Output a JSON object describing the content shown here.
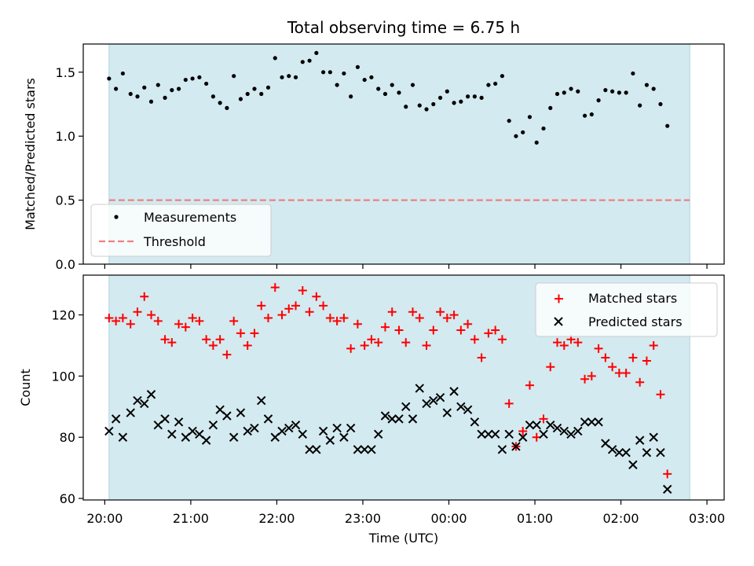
{
  "chart_data": [
    {
      "type": "scatter",
      "title": "Total observing time = 6.75 h",
      "xlabel": "",
      "ylabel": "Matched/Predicted stars",
      "ylim": [
        0,
        1.72
      ],
      "yticks": [
        0.0,
        0.5,
        1.0,
        1.5
      ],
      "ytick_labels": [
        "0.0",
        "0.5",
        "1.0",
        "1.5"
      ],
      "xlim_hours": [
        19.75,
        27.2
      ],
      "xticks": [
        20,
        21,
        22,
        23,
        24,
        25,
        26,
        27
      ],
      "shaded_span": [
        20.05,
        26.8
      ],
      "shade_color": "#d3eaf0",
      "legend_position": "lower-left",
      "series": [
        {
          "name": "Measurements",
          "marker": "dot",
          "color": "#000000",
          "points": [
            [
              20.05,
              1.45
            ],
            [
              20.13,
              1.37
            ],
            [
              20.21,
              1.49
            ],
            [
              20.3,
              1.33
            ],
            [
              20.38,
              1.31
            ],
            [
              20.46,
              1.38
            ],
            [
              20.54,
              1.27
            ],
            [
              20.62,
              1.4
            ],
            [
              20.7,
              1.3
            ],
            [
              20.78,
              1.36
            ],
            [
              20.86,
              1.37
            ],
            [
              20.94,
              1.44
            ],
            [
              21.02,
              1.45
            ],
            [
              21.1,
              1.46
            ],
            [
              21.18,
              1.41
            ],
            [
              21.26,
              1.31
            ],
            [
              21.34,
              1.26
            ],
            [
              21.42,
              1.22
            ],
            [
              21.5,
              1.47
            ],
            [
              21.58,
              1.29
            ],
            [
              21.66,
              1.33
            ],
            [
              21.74,
              1.37
            ],
            [
              21.82,
              1.33
            ],
            [
              21.9,
              1.38
            ],
            [
              21.98,
              1.61
            ],
            [
              22.06,
              1.46
            ],
            [
              22.14,
              1.47
            ],
            [
              22.22,
              1.46
            ],
            [
              22.3,
              1.58
            ],
            [
              22.38,
              1.59
            ],
            [
              22.46,
              1.65
            ],
            [
              22.54,
              1.5
            ],
            [
              22.62,
              1.5
            ],
            [
              22.7,
              1.4
            ],
            [
              22.78,
              1.49
            ],
            [
              22.86,
              1.31
            ],
            [
              22.94,
              1.54
            ],
            [
              23.02,
              1.44
            ],
            [
              23.1,
              1.46
            ],
            [
              23.18,
              1.37
            ],
            [
              23.26,
              1.33
            ],
            [
              23.34,
              1.4
            ],
            [
              23.42,
              1.34
            ],
            [
              23.5,
              1.23
            ],
            [
              23.58,
              1.4
            ],
            [
              23.66,
              1.24
            ],
            [
              23.74,
              1.21
            ],
            [
              23.82,
              1.25
            ],
            [
              23.9,
              1.3
            ],
            [
              23.98,
              1.35
            ],
            [
              24.06,
              1.26
            ],
            [
              24.14,
              1.27
            ],
            [
              24.22,
              1.31
            ],
            [
              24.3,
              1.31
            ],
            [
              24.38,
              1.3
            ],
            [
              24.46,
              1.4
            ],
            [
              24.54,
              1.41
            ],
            [
              24.62,
              1.47
            ],
            [
              24.7,
              1.12
            ],
            [
              24.78,
              1.0
            ],
            [
              24.86,
              1.03
            ],
            [
              24.94,
              1.15
            ],
            [
              25.02,
              0.95
            ],
            [
              25.1,
              1.06
            ],
            [
              25.18,
              1.22
            ],
            [
              25.26,
              1.33
            ],
            [
              25.34,
              1.34
            ],
            [
              25.42,
              1.37
            ],
            [
              25.5,
              1.35
            ],
            [
              25.58,
              1.16
            ],
            [
              25.66,
              1.17
            ],
            [
              25.74,
              1.28
            ],
            [
              25.82,
              1.36
            ],
            [
              25.9,
              1.35
            ],
            [
              25.98,
              1.34
            ],
            [
              26.06,
              1.34
            ],
            [
              26.14,
              1.49
            ],
            [
              26.22,
              1.24
            ],
            [
              26.3,
              1.4
            ],
            [
              26.38,
              1.37
            ],
            [
              26.46,
              1.25
            ],
            [
              26.54,
              1.08
            ]
          ]
        },
        {
          "name": "Threshold",
          "marker": "dashed-line",
          "color": "#f08080",
          "y": 0.5,
          "x": [
            20.05,
            26.8
          ]
        }
      ]
    },
    {
      "type": "scatter",
      "title": "",
      "xlabel": "Time (UTC)",
      "ylabel": "Count",
      "ylim": [
        59.5,
        133
      ],
      "yticks": [
        60,
        80,
        100,
        120
      ],
      "ytick_labels": [
        "60",
        "80",
        "100",
        "120"
      ],
      "xlim_hours": [
        19.75,
        27.2
      ],
      "xticks": [
        20,
        21,
        22,
        23,
        24,
        25,
        26,
        27
      ],
      "xtick_labels": [
        "20:00",
        "21:00",
        "22:00",
        "23:00",
        "00:00",
        "01:00",
        "02:00",
        "03:00"
      ],
      "shaded_span": [
        20.05,
        26.8
      ],
      "shade_color": "#d3eaf0",
      "legend_position": "top-right",
      "series": [
        {
          "name": "Matched stars",
          "marker": "plus",
          "color": "#ff0000",
          "points": [
            [
              20.05,
              119
            ],
            [
              20.13,
              118
            ],
            [
              20.21,
              119
            ],
            [
              20.3,
              117
            ],
            [
              20.38,
              121
            ],
            [
              20.46,
              126
            ],
            [
              20.54,
              120
            ],
            [
              20.62,
              118
            ],
            [
              20.7,
              112
            ],
            [
              20.78,
              111
            ],
            [
              20.86,
              117
            ],
            [
              20.94,
              116
            ],
            [
              21.02,
              119
            ],
            [
              21.1,
              118
            ],
            [
              21.18,
              112
            ],
            [
              21.26,
              110
            ],
            [
              21.34,
              112
            ],
            [
              21.42,
              107
            ],
            [
              21.5,
              118
            ],
            [
              21.58,
              114
            ],
            [
              21.66,
              110
            ],
            [
              21.74,
              114
            ],
            [
              21.82,
              123
            ],
            [
              21.9,
              119
            ],
            [
              21.98,
              129
            ],
            [
              22.06,
              120
            ],
            [
              22.14,
              122
            ],
            [
              22.22,
              123
            ],
            [
              22.3,
              128
            ],
            [
              22.38,
              121
            ],
            [
              22.46,
              126
            ],
            [
              22.54,
              123
            ],
            [
              22.62,
              119
            ],
            [
              22.7,
              118
            ],
            [
              22.78,
              119
            ],
            [
              22.86,
              109
            ],
            [
              22.94,
              117
            ],
            [
              23.02,
              110
            ],
            [
              23.1,
              112
            ],
            [
              23.18,
              111
            ],
            [
              23.26,
              116
            ],
            [
              23.34,
              121
            ],
            [
              23.42,
              115
            ],
            [
              23.5,
              111
            ],
            [
              23.58,
              121
            ],
            [
              23.66,
              119
            ],
            [
              23.74,
              110
            ],
            [
              23.82,
              115
            ],
            [
              23.9,
              121
            ],
            [
              23.98,
              119
            ],
            [
              24.06,
              120
            ],
            [
              24.14,
              115
            ],
            [
              24.22,
              117
            ],
            [
              24.3,
              112
            ],
            [
              24.38,
              106
            ],
            [
              24.46,
              114
            ],
            [
              24.54,
              115
            ],
            [
              24.62,
              112
            ],
            [
              24.7,
              91
            ],
            [
              24.78,
              77
            ],
            [
              24.86,
              82
            ],
            [
              24.94,
              97
            ],
            [
              25.02,
              80
            ],
            [
              25.1,
              86
            ],
            [
              25.18,
              103
            ],
            [
              25.26,
              111
            ],
            [
              25.34,
              110
            ],
            [
              25.42,
              112
            ],
            [
              25.5,
              111
            ],
            [
              25.58,
              99
            ],
            [
              25.66,
              100
            ],
            [
              25.74,
              109
            ],
            [
              25.82,
              106
            ],
            [
              25.9,
              103
            ],
            [
              25.98,
              101
            ],
            [
              26.06,
              101
            ],
            [
              26.14,
              106
            ],
            [
              26.22,
              98
            ],
            [
              26.3,
              105
            ],
            [
              26.38,
              110
            ],
            [
              26.46,
              94
            ],
            [
              26.54,
              68
            ]
          ]
        },
        {
          "name": "Predicted stars",
          "marker": "x",
          "color": "#000000",
          "points": [
            [
              20.05,
              82
            ],
            [
              20.13,
              86
            ],
            [
              20.21,
              80
            ],
            [
              20.3,
              88
            ],
            [
              20.38,
              92
            ],
            [
              20.46,
              91
            ],
            [
              20.54,
              94
            ],
            [
              20.62,
              84
            ],
            [
              20.7,
              86
            ],
            [
              20.78,
              81
            ],
            [
              20.86,
              85
            ],
            [
              20.94,
              80
            ],
            [
              21.02,
              82
            ],
            [
              21.1,
              81
            ],
            [
              21.18,
              79
            ],
            [
              21.26,
              84
            ],
            [
              21.34,
              89
            ],
            [
              21.42,
              87
            ],
            [
              21.5,
              80
            ],
            [
              21.58,
              88
            ],
            [
              21.66,
              82
            ],
            [
              21.74,
              83
            ],
            [
              21.82,
              92
            ],
            [
              21.9,
              86
            ],
            [
              21.98,
              80
            ],
            [
              22.06,
              82
            ],
            [
              22.14,
              83
            ],
            [
              22.22,
              84
            ],
            [
              22.3,
              81
            ],
            [
              22.38,
              76
            ],
            [
              22.46,
              76
            ],
            [
              22.54,
              82
            ],
            [
              22.62,
              79
            ],
            [
              22.7,
              83
            ],
            [
              22.78,
              80
            ],
            [
              22.86,
              83
            ],
            [
              22.94,
              76
            ],
            [
              23.02,
              76
            ],
            [
              23.1,
              76
            ],
            [
              23.18,
              81
            ],
            [
              23.26,
              87
            ],
            [
              23.34,
              86
            ],
            [
              23.42,
              86
            ],
            [
              23.5,
              90
            ],
            [
              23.58,
              86
            ],
            [
              23.66,
              96
            ],
            [
              23.74,
              91
            ],
            [
              23.82,
              92
            ],
            [
              23.9,
              93
            ],
            [
              23.98,
              88
            ],
            [
              24.06,
              95
            ],
            [
              24.14,
              90
            ],
            [
              24.22,
              89
            ],
            [
              24.3,
              85
            ],
            [
              24.38,
              81
            ],
            [
              24.46,
              81
            ],
            [
              24.54,
              81
            ],
            [
              24.62,
              76
            ],
            [
              24.7,
              81
            ],
            [
              24.78,
              77
            ],
            [
              24.86,
              80
            ],
            [
              24.94,
              84
            ],
            [
              25.02,
              84
            ],
            [
              25.1,
              81
            ],
            [
              25.18,
              84
            ],
            [
              25.26,
              83
            ],
            [
              25.34,
              82
            ],
            [
              25.42,
              81
            ],
            [
              25.5,
              82
            ],
            [
              25.58,
              85
            ],
            [
              25.66,
              85
            ],
            [
              25.74,
              85
            ],
            [
              25.82,
              78
            ],
            [
              25.9,
              76
            ],
            [
              25.98,
              75
            ],
            [
              26.06,
              75
            ],
            [
              26.14,
              71
            ],
            [
              26.22,
              79
            ],
            [
              26.3,
              75
            ],
            [
              26.38,
              80
            ],
            [
              26.46,
              75
            ],
            [
              26.54,
              63
            ]
          ]
        }
      ]
    }
  ]
}
